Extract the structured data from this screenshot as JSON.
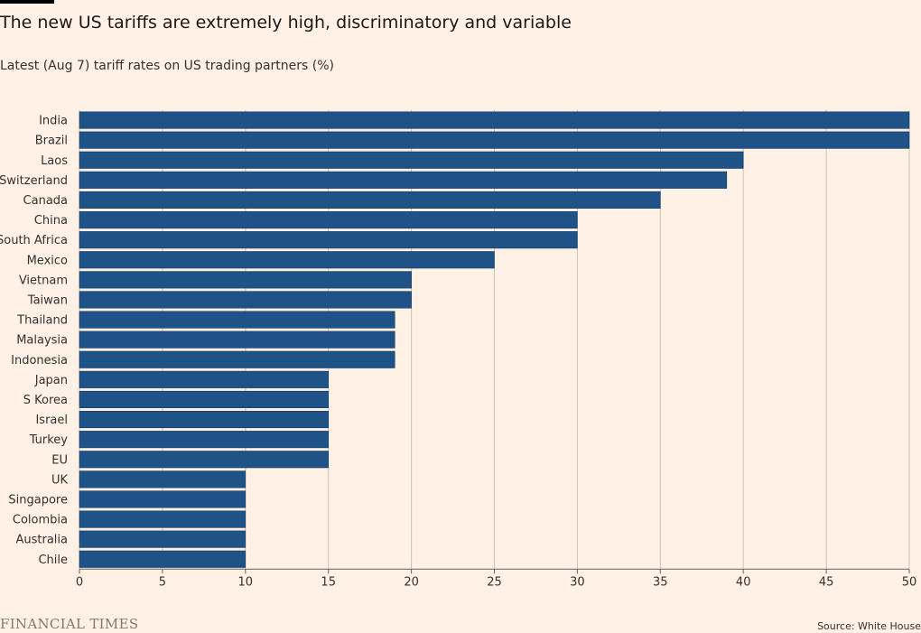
{
  "header": {
    "title": "The new US tariffs are extremely high, discriminatory and variable",
    "subtitle": "Latest (Aug 7) tariff rates on US trading partners (%)"
  },
  "footer": {
    "brand": "FINANCIAL TIMES",
    "source": "Source: White House"
  },
  "colors": {
    "bar": "#1f5287",
    "bar_stroke": "#153d66",
    "grid": "#ccc1b7",
    "background": "#fff1e5"
  },
  "chart_data": {
    "type": "bar",
    "orientation": "horizontal",
    "categories": [
      "India",
      "Brazil",
      "Laos",
      "Switzerland",
      "Canada",
      "China",
      "South Africa",
      "Mexico",
      "Vietnam",
      "Taiwan",
      "Thailand",
      "Malaysia",
      "Indonesia",
      "Japan",
      "S Korea",
      "Israel",
      "Turkey",
      "EU",
      "UK",
      "Singapore",
      "Colombia",
      "Australia",
      "Chile"
    ],
    "values": [
      50,
      50,
      40,
      39,
      35,
      30,
      30,
      25,
      20,
      20,
      19,
      19,
      19,
      15,
      15,
      15,
      15,
      15,
      10,
      10,
      10,
      10,
      10
    ],
    "xlim": [
      0,
      50
    ],
    "xticks": [
      0,
      5,
      10,
      15,
      20,
      25,
      30,
      35,
      40,
      45,
      50
    ],
    "grid": true,
    "legend": "none"
  }
}
